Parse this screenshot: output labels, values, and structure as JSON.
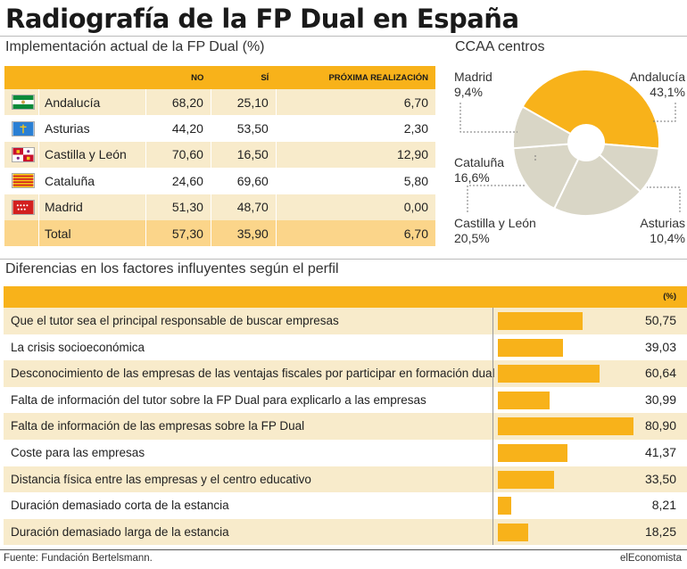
{
  "title": "Radiografía de la FP Dual en España",
  "subtitle": "Implementación actual de la FP Dual (%)",
  "pie_title": "CCAA centros",
  "table": {
    "headers": [
      "NO",
      "SÍ",
      "PRÓXIMA REALIZACIÓN"
    ],
    "rows": [
      {
        "name": "Andalucía",
        "flag": "andalucia-flag",
        "no": "68,20",
        "si": "25,10",
        "proxima": "6,70"
      },
      {
        "name": "Asturias",
        "flag": "asturias-flag",
        "no": "44,20",
        "si": "53,50",
        "proxima": "2,30"
      },
      {
        "name": "Castilla y León",
        "flag": "castilla-leon-flag",
        "no": "70,60",
        "si": "16,50",
        "proxima": "12,90"
      },
      {
        "name": "Cataluña",
        "flag": "cataluna-flag",
        "no": "24,60",
        "si": "69,60",
        "proxima": "5,80"
      },
      {
        "name": "Madrid",
        "flag": "madrid-flag",
        "no": "51,30",
        "si": "48,70",
        "proxima": "0,00"
      },
      {
        "name": "Total",
        "flag": "",
        "no": "57,30",
        "si": "35,90",
        "proxima": "6,70"
      }
    ]
  },
  "section2_title": "Diferencias en los factores influyentes según el perfil",
  "pct_header": "(%)",
  "source": "Fuente: Fundación Bertelsmann.",
  "brand": "elEconomista",
  "colors": {
    "accent": "#f8b21a",
    "pie_gray": "#d9d6c6",
    "row_alt": "#f8ebcb"
  },
  "chart_data": [
    {
      "type": "pie",
      "title": "CCAA centros",
      "slices": [
        {
          "label": "Andalucía",
          "value": 43.1,
          "display": "43,1%"
        },
        {
          "label": "Asturias",
          "value": 10.4,
          "display": "10,4%"
        },
        {
          "label": "Castilla y León",
          "value": 20.5,
          "display": "20,5%"
        },
        {
          "label": "Cataluña",
          "value": 16.6,
          "display": "16,6%"
        },
        {
          "label": "Madrid",
          "value": 9.4,
          "display": "9,4%"
        }
      ]
    },
    {
      "type": "bar",
      "title": "Diferencias en los factores influyentes según el perfil",
      "unit": "(%)",
      "categories": [
        "Que el tutor sea el principal responsable de buscar empresas",
        "La crisis socioeconómica",
        "Desconocimiento de las empresas de las ventajas fiscales por participar en formación dual",
        "Falta de información del tutor sobre la FP Dual para explicarlo a las empresas",
        "Falta de información de las empresas sobre la FP Dual",
        "Coste para las empresas",
        "Distancia física entre las empresas y el centro educativo",
        "Duración demasiado corta de la estancia",
        "Duración demasiado larga de la estancia"
      ],
      "values": [
        50.75,
        39.03,
        60.64,
        30.99,
        80.9,
        41.37,
        33.5,
        8.21,
        18.25
      ],
      "display": [
        "50,75",
        "39,03",
        "60,64",
        "30,99",
        "80,90",
        "41,37",
        "33,50",
        "8,21",
        "18,25"
      ],
      "xlim": [
        0,
        82
      ]
    }
  ]
}
